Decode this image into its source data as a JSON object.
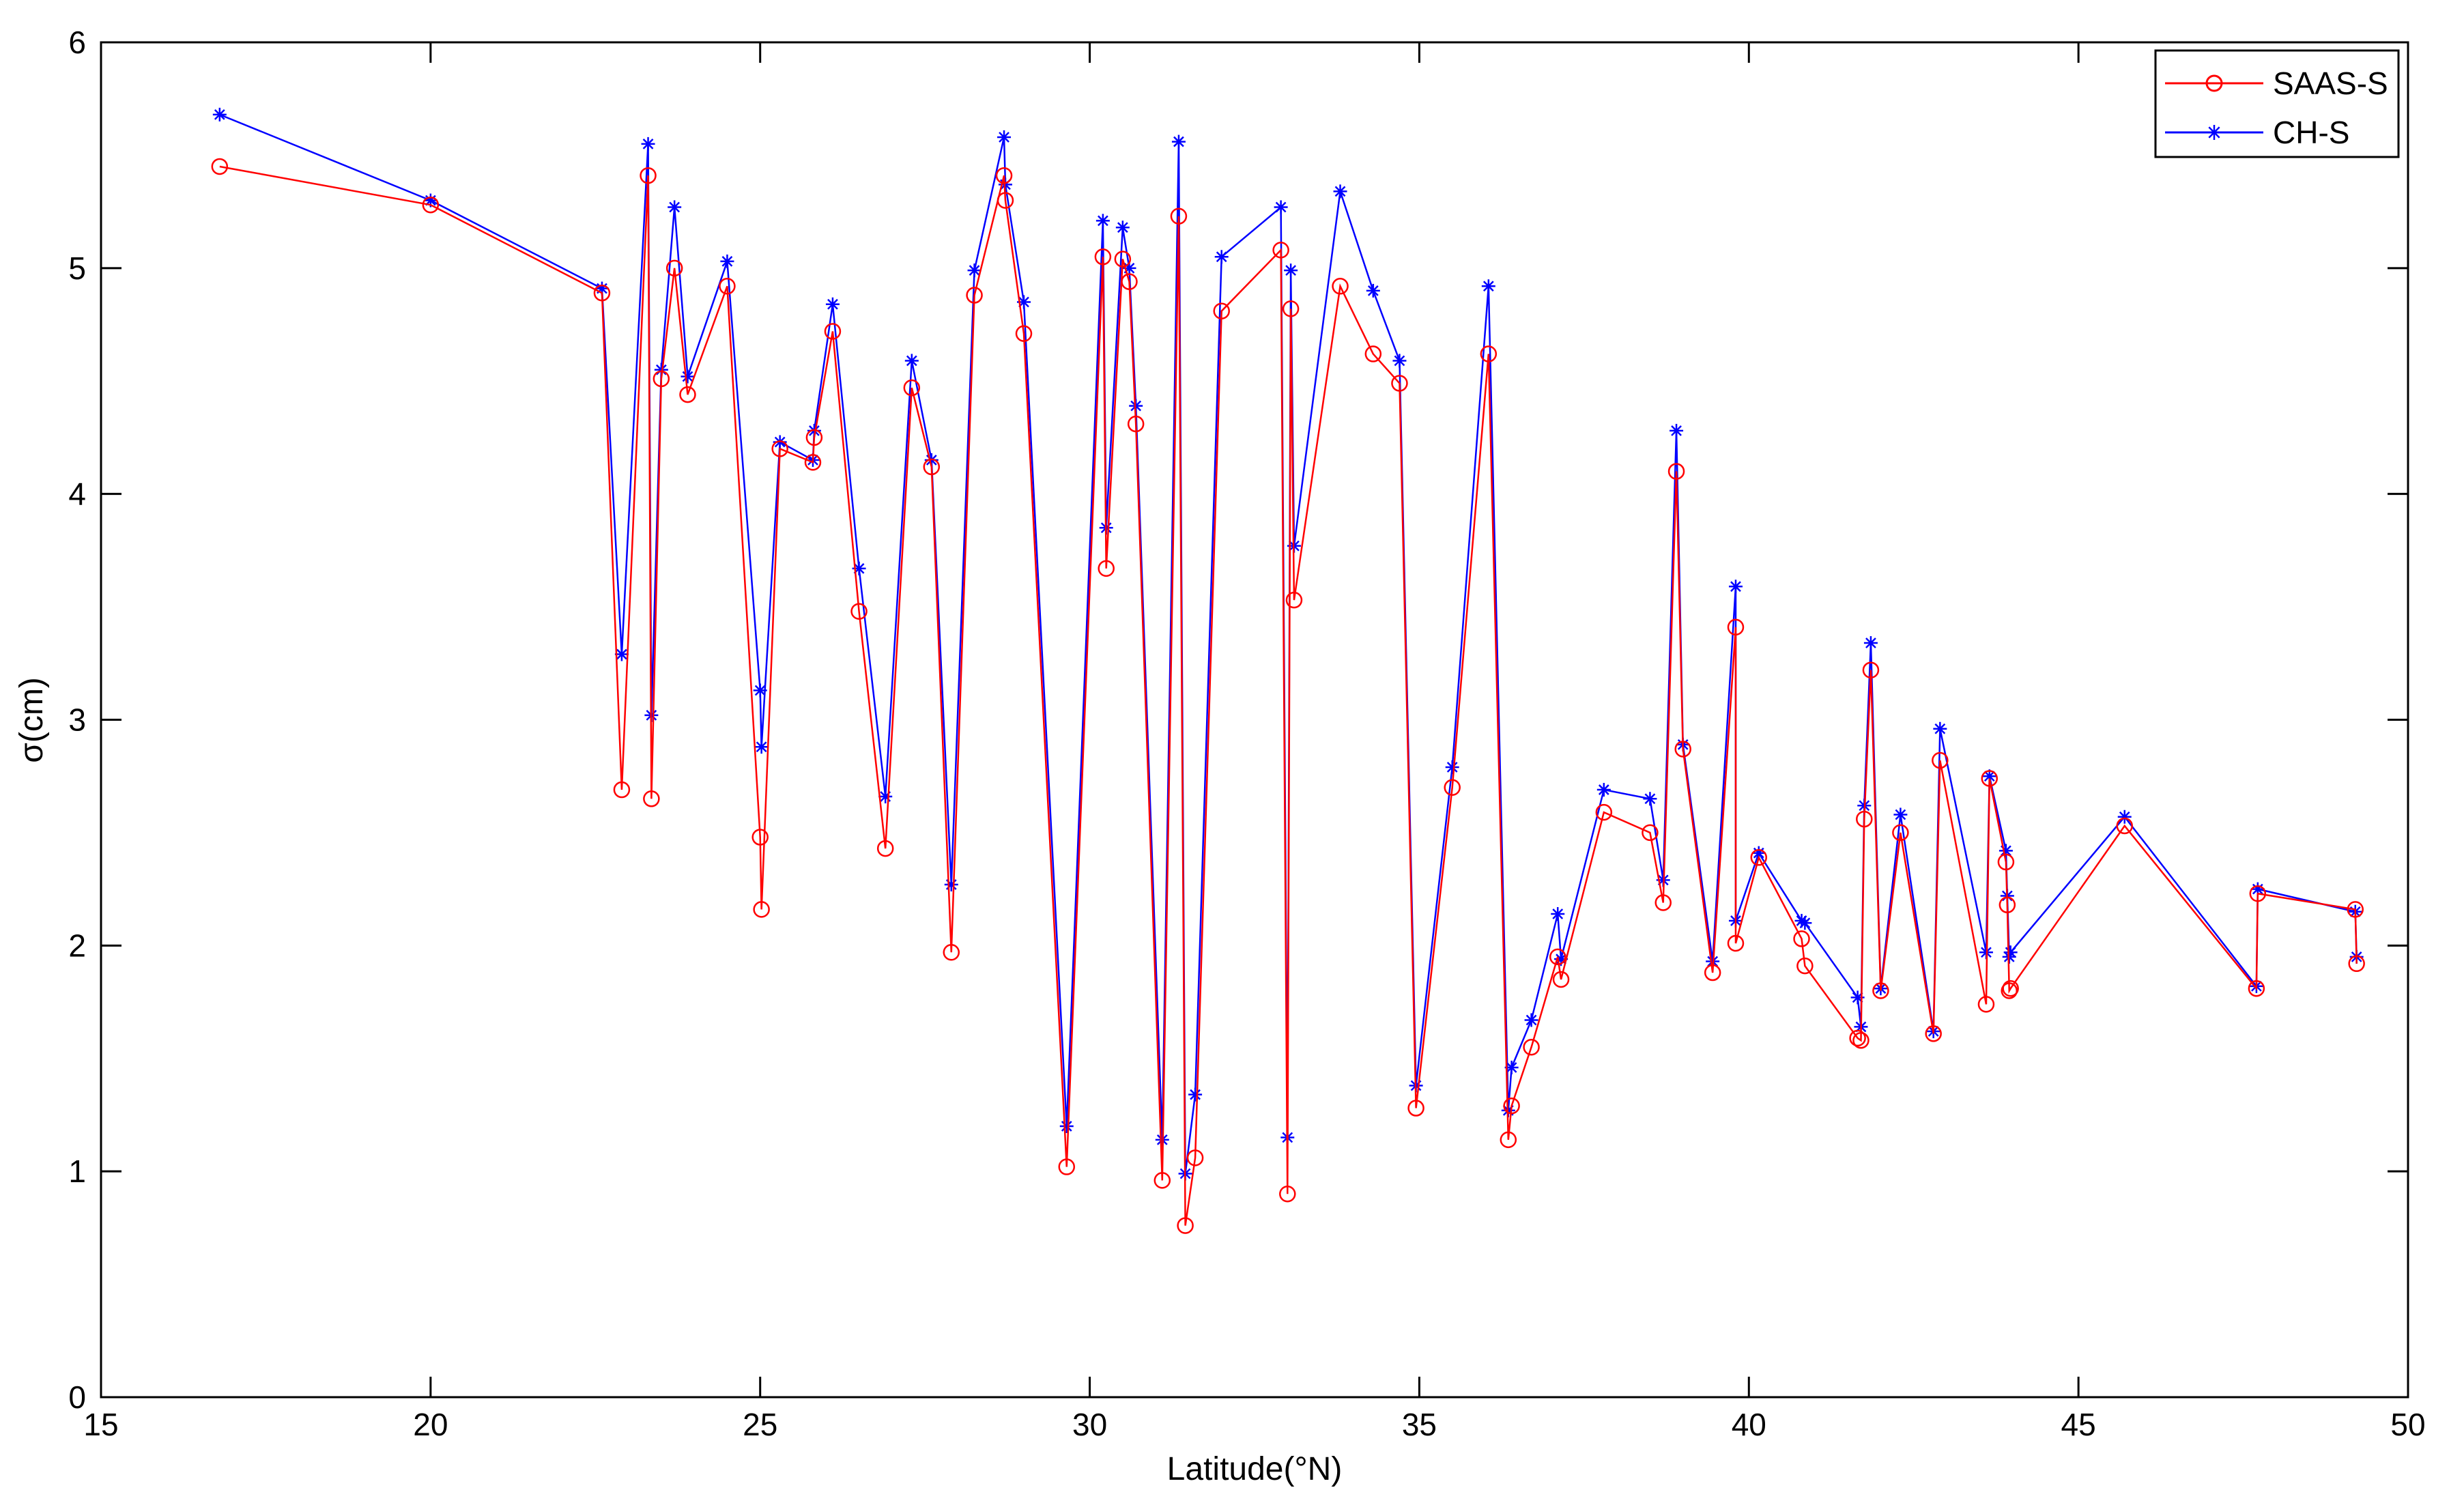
{
  "chart_data": {
    "type": "line",
    "title": "",
    "xlabel": "Latitude(°N)",
    "ylabel": "σ(cm)",
    "xlim": [
      15,
      50
    ],
    "ylim": [
      0,
      6
    ],
    "xticks": [
      15,
      20,
      25,
      30,
      35,
      40,
      45,
      50
    ],
    "yticks": [
      0,
      1,
      2,
      3,
      4,
      5,
      6
    ],
    "grid": false,
    "legend_position": "top-right",
    "series": [
      {
        "name": "SAAS-S",
        "color": "#ff0000",
        "marker": "circle",
        "x": [
          16.8,
          20.0,
          22.6,
          22.9,
          23.3,
          23.35,
          23.5,
          23.7,
          23.9,
          24.5,
          25.0,
          25.02,
          25.3,
          25.8,
          25.82,
          26.1,
          26.5,
          26.9,
          27.3,
          27.6,
          27.9,
          28.25,
          28.7,
          28.72,
          29.0,
          29.65,
          30.2,
          30.25,
          30.5,
          30.6,
          30.7,
          31.1,
          31.35,
          31.45,
          31.6,
          32.0,
          32.9,
          33.0,
          33.05,
          33.1,
          33.8,
          34.3,
          34.7,
          34.95,
          35.5,
          36.05,
          36.35,
          36.4,
          36.7,
          37.1,
          37.15,
          37.8,
          38.5,
          38.7,
          38.9,
          39.0,
          39.45,
          39.8,
          39.8,
          40.15,
          40.8,
          40.85,
          41.65,
          41.7,
          41.75,
          41.85,
          42.0,
          42.3,
          42.8,
          42.9,
          43.6,
          43.65,
          43.9,
          43.92,
          43.95,
          43.97,
          45.7,
          47.7,
          47.72,
          49.2,
          49.22
        ],
        "y": [
          5.45,
          5.28,
          4.89,
          2.69,
          5.41,
          2.65,
          4.51,
          5.0,
          4.44,
          4.92,
          2.48,
          2.16,
          4.2,
          4.14,
          4.25,
          4.72,
          3.48,
          2.43,
          4.47,
          4.12,
          1.97,
          4.88,
          5.41,
          5.3,
          4.71,
          1.02,
          5.05,
          3.67,
          5.04,
          4.94,
          4.31,
          0.96,
          5.23,
          0.76,
          1.06,
          4.81,
          5.08,
          0.9,
          4.82,
          3.53,
          4.92,
          4.62,
          4.49,
          1.28,
          2.7,
          4.62,
          1.14,
          1.29,
          1.55,
          1.95,
          1.85,
          2.59,
          2.5,
          2.19,
          4.1,
          2.87,
          1.88,
          3.41,
          2.01,
          2.39,
          2.03,
          1.91,
          1.59,
          1.58,
          2.56,
          3.22,
          1.8,
          2.5,
          1.61,
          2.82,
          1.74,
          2.74,
          2.37,
          2.18,
          1.8,
          1.81,
          2.53,
          1.81,
          2.23,
          2.16,
          1.92
        ]
      },
      {
        "name": "CH-S",
        "color": "#0000ff",
        "marker": "star",
        "x": [
          16.8,
          20.0,
          22.6,
          22.9,
          23.3,
          23.35,
          23.5,
          23.7,
          23.9,
          24.5,
          25.0,
          25.02,
          25.3,
          25.8,
          25.82,
          26.1,
          26.5,
          26.9,
          27.3,
          27.6,
          27.9,
          28.25,
          28.7,
          28.72,
          29.0,
          29.65,
          30.2,
          30.25,
          30.5,
          30.6,
          30.7,
          31.1,
          31.35,
          31.45,
          31.6,
          32.0,
          32.9,
          33.0,
          33.05,
          33.1,
          33.8,
          34.3,
          34.7,
          34.95,
          35.5,
          36.05,
          36.35,
          36.4,
          36.7,
          37.1,
          37.15,
          37.8,
          38.5,
          38.7,
          38.9,
          39.0,
          39.45,
          39.8,
          39.8,
          40.15,
          40.8,
          40.85,
          41.65,
          41.7,
          41.75,
          41.85,
          42.0,
          42.3,
          42.8,
          42.9,
          43.6,
          43.65,
          43.9,
          43.92,
          43.95,
          43.97,
          45.7,
          47.7,
          47.72,
          49.2,
          49.22
        ],
        "y": [
          5.68,
          5.3,
          4.91,
          3.29,
          5.55,
          3.02,
          4.55,
          5.27,
          4.52,
          5.03,
          3.13,
          2.88,
          4.23,
          4.15,
          4.28,
          4.84,
          3.67,
          2.66,
          4.59,
          4.15,
          2.27,
          4.99,
          5.58,
          5.37,
          4.85,
          1.2,
          5.21,
          3.85,
          5.18,
          5.0,
          4.39,
          1.14,
          5.56,
          0.99,
          1.34,
          5.05,
          5.27,
          1.15,
          4.99,
          3.77,
          5.34,
          4.9,
          4.59,
          1.38,
          2.79,
          4.92,
          1.27,
          1.46,
          1.67,
          2.14,
          1.94,
          2.69,
          2.65,
          2.29,
          4.28,
          2.89,
          1.93,
          3.59,
          2.11,
          2.41,
          2.11,
          2.1,
          1.77,
          1.64,
          2.62,
          3.34,
          1.81,
          2.58,
          1.62,
          2.96,
          1.97,
          2.75,
          2.42,
          2.22,
          1.95,
          1.97,
          2.57,
          1.82,
          2.25,
          2.15,
          1.95
        ]
      }
    ]
  }
}
